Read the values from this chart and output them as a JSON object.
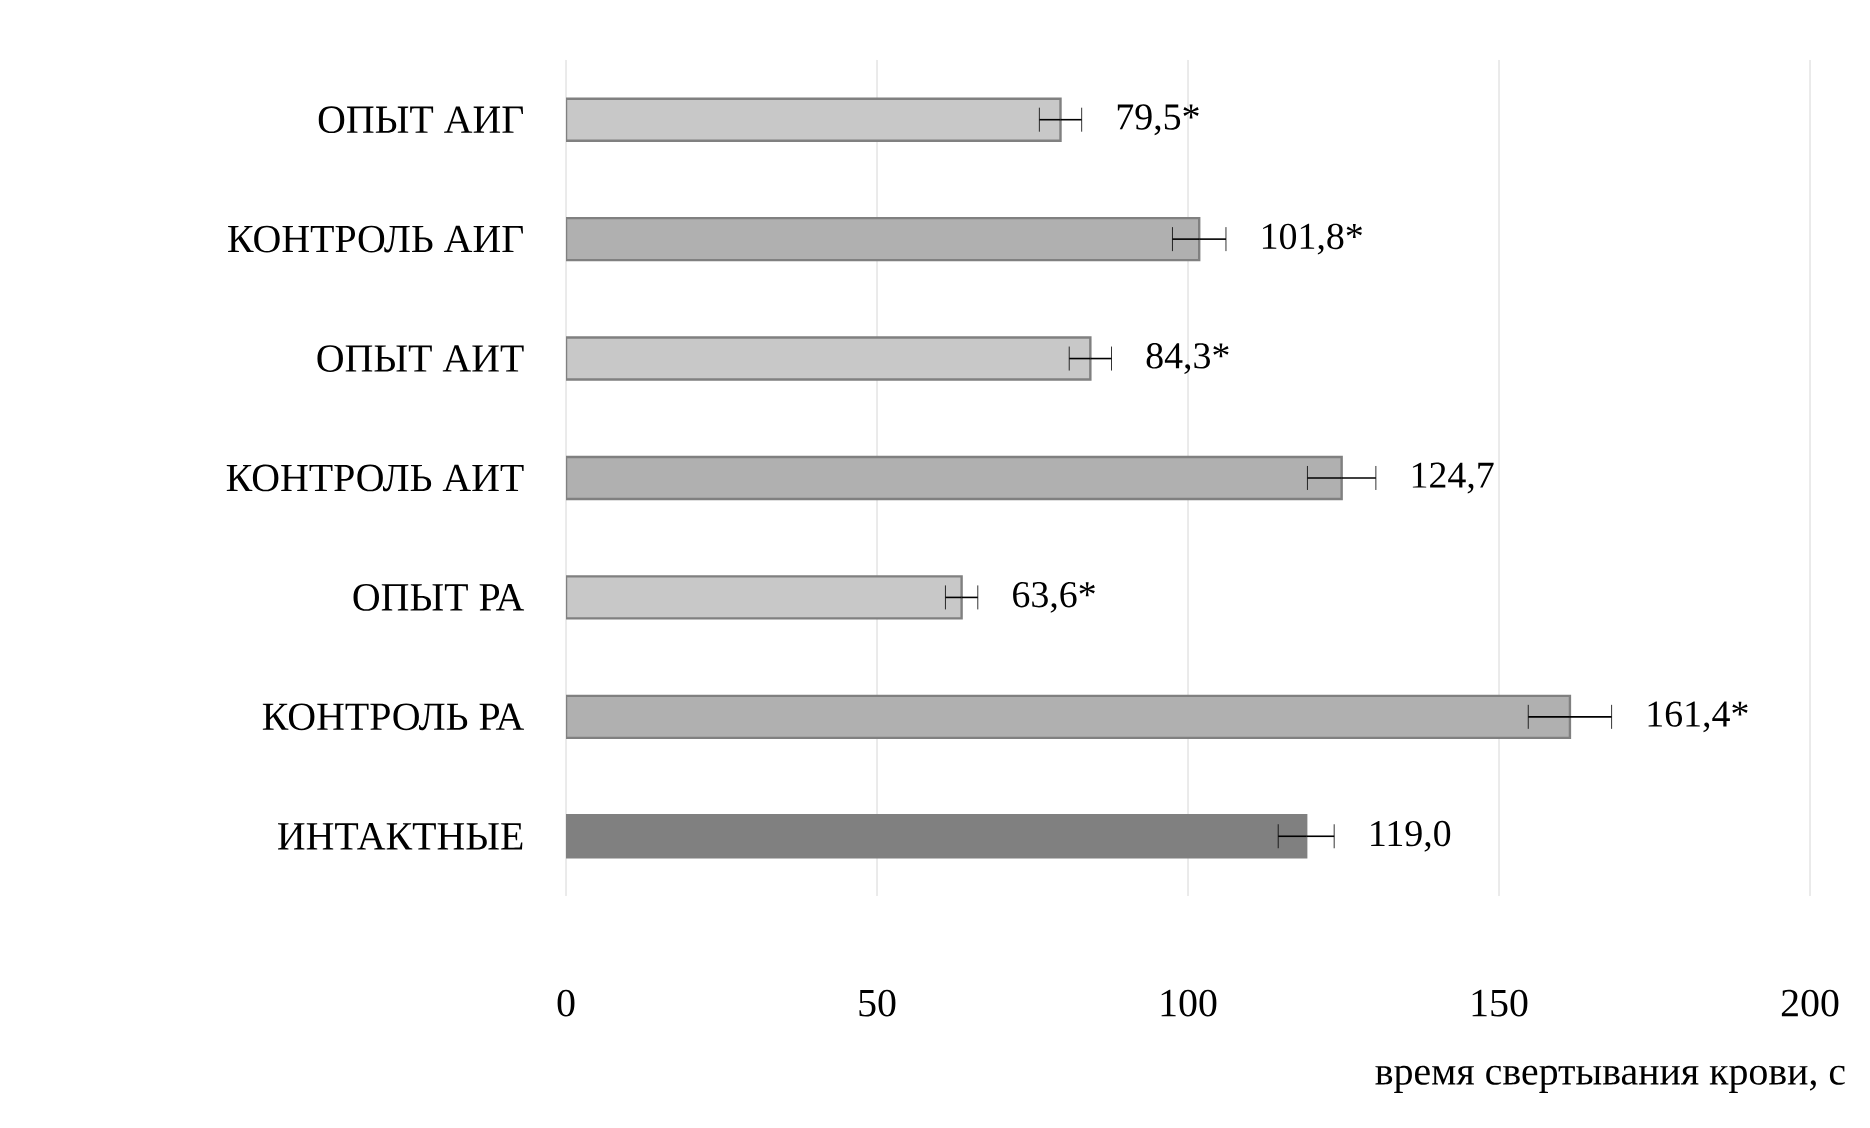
{
  "chart_data": {
    "type": "bar",
    "orientation": "horizontal",
    "xlabel": "время свертывания крови, с",
    "categories": [
      "ОПЫТ АИГ",
      "КОНТРОЛЬ АИГ",
      "ОПЫТ АИТ",
      "КОНТРОЛЬ АИТ",
      "ОПЫТ РА",
      "КОНТРОЛЬ РА",
      "ИНТАКТНЫЕ"
    ],
    "values": [
      79.5,
      101.8,
      84.3,
      124.7,
      63.6,
      161.4,
      119.0
    ],
    "colors": [
      "#c8c8c8",
      "#b0b0b0",
      "#c8c8c8",
      "#b0b0b0",
      "#c8c8c8",
      "#b0b0b0",
      "#808080"
    ],
    "errors": [
      3.4,
      4.3,
      3.4,
      5.5,
      2.6,
      6.7,
      4.5
    ],
    "value_labels": [
      "79,5*",
      "101,8*",
      "84,3*",
      "124,7",
      "63,6*",
      "161,4*",
      "119,0"
    ],
    "xlim": [
      0,
      200
    ],
    "xticks": [
      0,
      50,
      100,
      150,
      200
    ],
    "grid": "x"
  }
}
